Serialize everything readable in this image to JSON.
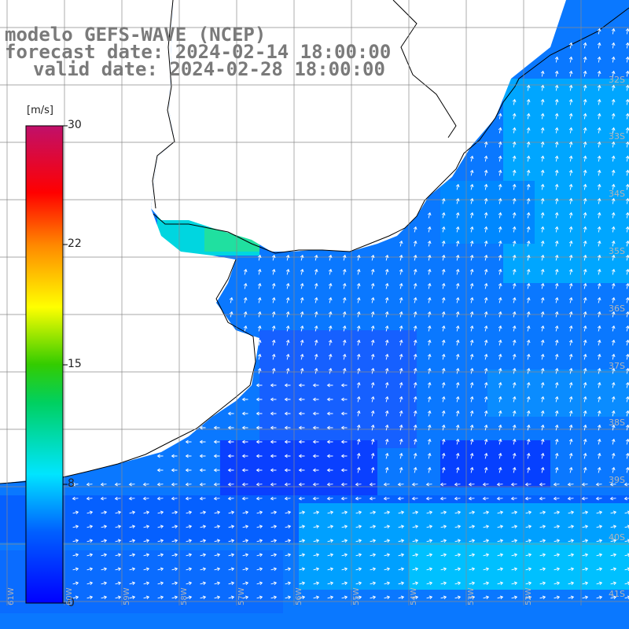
{
  "title": {
    "line1": "modelo GEFS-WAVE (NCEP)",
    "line2": "forecast date: 2024-02-14 18:00:00",
    "line3": "valid date: 2024-02-28 18:00:00"
  },
  "colorbar": {
    "unit": "[m/s]",
    "ticks": [
      "30",
      "22",
      "15",
      "8",
      "0"
    ],
    "range": [
      0,
      30
    ]
  },
  "grid": {
    "lat_labels": [
      "32S",
      "33S",
      "34S",
      "35S",
      "36S",
      "37S",
      "38S",
      "39S",
      "40S",
      "41S"
    ],
    "lon_labels": [
      "61W",
      "60W",
      "59W",
      "58W",
      "57W",
      "56W",
      "55W",
      "54W",
      "53W",
      "52W"
    ]
  },
  "colors": {
    "land": "#ffffff",
    "coastline": "#000000",
    "gridline": "#8a8a8a",
    "arrows": "#ffffff",
    "low_speed": "#0000ff",
    "mid_speed": "#00e5ff",
    "title_text": "#7a7a7a"
  }
}
